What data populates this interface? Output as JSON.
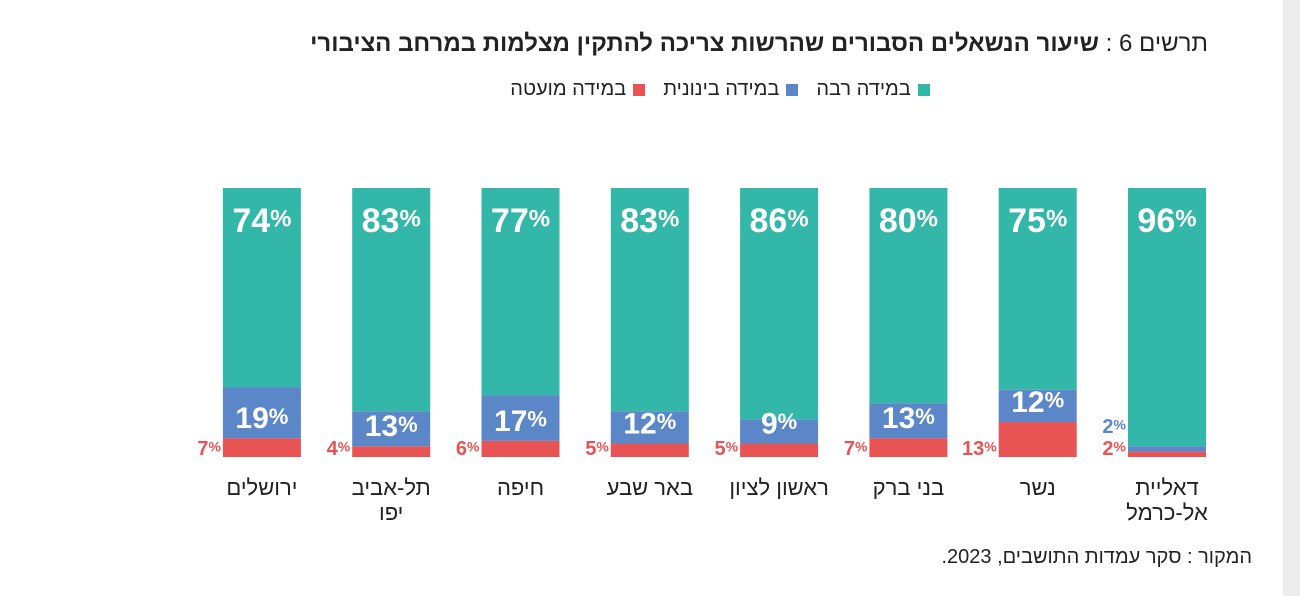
{
  "chart_data": {
    "type": "bar",
    "stacked": true,
    "title_prefix": "תרשים 6 :",
    "title": "שיעור הנשאלים הסבורים שהרשות צריכה להתקין מצלמות במרחב הציבורי",
    "categories": [
      "דאליית\nאל-כרמל",
      "נשר",
      "בני ברק",
      "ראשון לציון",
      "באר שבע",
      "חיפה",
      "תל-אביב\nיפו",
      "ירושלים"
    ],
    "series": [
      {
        "name": "במידה רבה",
        "color": "#33b7a8",
        "values": [
          96,
          75,
          80,
          86,
          83,
          77,
          83,
          74
        ]
      },
      {
        "name": "במידה בינונית",
        "color": "#5b87c9",
        "values": [
          2,
          12,
          13,
          9,
          12,
          17,
          13,
          19
        ]
      },
      {
        "name": "במידה מועטה",
        "color": "#e85454",
        "values": [
          2,
          13,
          7,
          5,
          5,
          6,
          4,
          7
        ]
      }
    ],
    "value_suffix": "%",
    "ylim": [
      0,
      100
    ],
    "grid": false,
    "legend_position": "top-center",
    "xlabel": "",
    "ylabel": ""
  },
  "source": "המקור : סקר עמדות התושבים, 2023."
}
